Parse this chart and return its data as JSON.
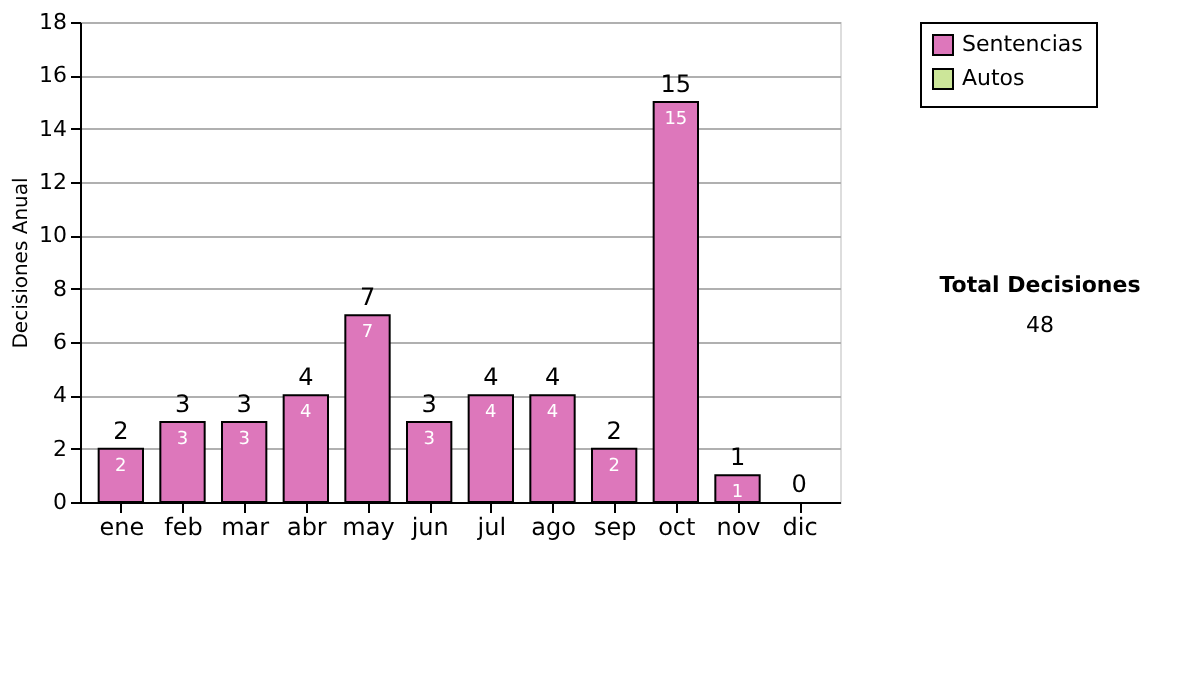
{
  "chart_data": {
    "type": "bar",
    "stacked": true,
    "ylabel": "Decisiones Anual",
    "categories": [
      "ene",
      "feb",
      "mar",
      "abr",
      "may",
      "jun",
      "jul",
      "ago",
      "sep",
      "oct",
      "nov",
      "dic"
    ],
    "series": [
      {
        "name": "Sentencias",
        "color": "#dd77bb",
        "values": [
          2,
          3,
          3,
          4,
          7,
          3,
          4,
          4,
          2,
          15,
          1,
          0
        ],
        "value_labels": [
          "2",
          "3",
          "3",
          "4",
          "7",
          "3",
          "4",
          "4",
          "2",
          "15",
          "1",
          null
        ]
      },
      {
        "name": "Autos",
        "color": "#cce699",
        "values": [
          0,
          0,
          0,
          0,
          0,
          0,
          0,
          0,
          0,
          0,
          0,
          0
        ]
      }
    ],
    "totals": [
      "2",
      "3",
      "3",
      "4",
      "7",
      "3",
      "4",
      "4",
      "2",
      "15",
      "1",
      "0"
    ],
    "ylim": [
      0,
      18
    ],
    "yticks": [
      0,
      2,
      4,
      6,
      8,
      10,
      12,
      14,
      16,
      18
    ],
    "grid": "y",
    "legend": "right",
    "annotations": [
      "Total Decisiones",
      "48"
    ]
  }
}
